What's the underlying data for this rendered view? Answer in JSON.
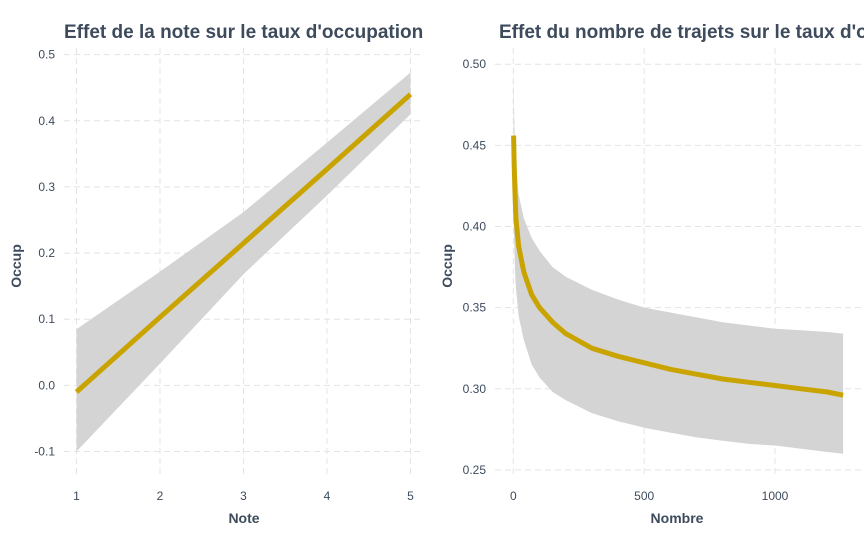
{
  "colors": {
    "line": "#c9a400",
    "ribbon": "#d4d4d4",
    "text": "#3d4b5c",
    "grid": "#e4e4e4"
  },
  "chart_data": [
    {
      "type": "line",
      "title": "Effet de la note sur le taux d'occupation",
      "xlabel": "Note",
      "ylabel": "Occup",
      "xlim": [
        0.85,
        5.15
      ],
      "ylim": [
        -0.14,
        0.51
      ],
      "xticks": [
        1,
        2,
        3,
        4,
        5
      ],
      "yticks": [
        -0.1,
        0.0,
        0.1,
        0.2,
        0.3,
        0.4,
        0.5
      ],
      "xtick_labels": [
        "1",
        "2",
        "3",
        "4",
        "5"
      ],
      "ytick_labels": [
        "-0.1",
        "0.0",
        "0.1",
        "0.2",
        "0.3",
        "0.4",
        "0.5"
      ],
      "grid": true,
      "series": [
        {
          "x": [
            1,
            2,
            3,
            4,
            5
          ],
          "y": [
            -0.01,
            0.103,
            0.215,
            0.327,
            0.44
          ],
          "lower": [
            -0.1,
            0.033,
            0.168,
            0.287,
            0.41
          ],
          "upper": [
            0.085,
            0.172,
            0.262,
            0.367,
            0.473
          ]
        }
      ]
    },
    {
      "type": "line",
      "title": "Effet du nombre de trajets sur le taux d'occupation",
      "xlabel": "Nombre",
      "ylabel": "Occup",
      "xlim": [
        -70,
        1340
      ],
      "ylim": [
        0.245,
        0.51
      ],
      "xticks": [
        0,
        500,
        1000
      ],
      "yticks": [
        0.25,
        0.3,
        0.35,
        0.4,
        0.45,
        0.5
      ],
      "xtick_labels": [
        "0",
        "500",
        "1000"
      ],
      "ytick_labels": [
        "0.25",
        "0.30",
        "0.35",
        "0.40",
        "0.45",
        "0.50"
      ],
      "grid": true,
      "series": [
        {
          "x": [
            1,
            3,
            6,
            10,
            20,
            40,
            70,
            100,
            150,
            200,
            300,
            400,
            500,
            600,
            700,
            800,
            900,
            1000,
            1100,
            1200,
            1260
          ],
          "y": [
            0.456,
            0.44,
            0.422,
            0.405,
            0.388,
            0.372,
            0.358,
            0.35,
            0.341,
            0.334,
            0.325,
            0.32,
            0.316,
            0.312,
            0.309,
            0.306,
            0.304,
            0.302,
            0.3,
            0.298,
            0.296
          ],
          "lower": [
            0.405,
            0.392,
            0.375,
            0.362,
            0.345,
            0.33,
            0.315,
            0.307,
            0.298,
            0.293,
            0.285,
            0.28,
            0.276,
            0.273,
            0.27,
            0.268,
            0.266,
            0.265,
            0.263,
            0.261,
            0.26
          ],
          "upper": [
            0.498,
            0.47,
            0.452,
            0.438,
            0.42,
            0.405,
            0.393,
            0.385,
            0.375,
            0.369,
            0.361,
            0.355,
            0.35,
            0.347,
            0.344,
            0.341,
            0.339,
            0.337,
            0.336,
            0.335,
            0.334
          ]
        }
      ]
    }
  ]
}
